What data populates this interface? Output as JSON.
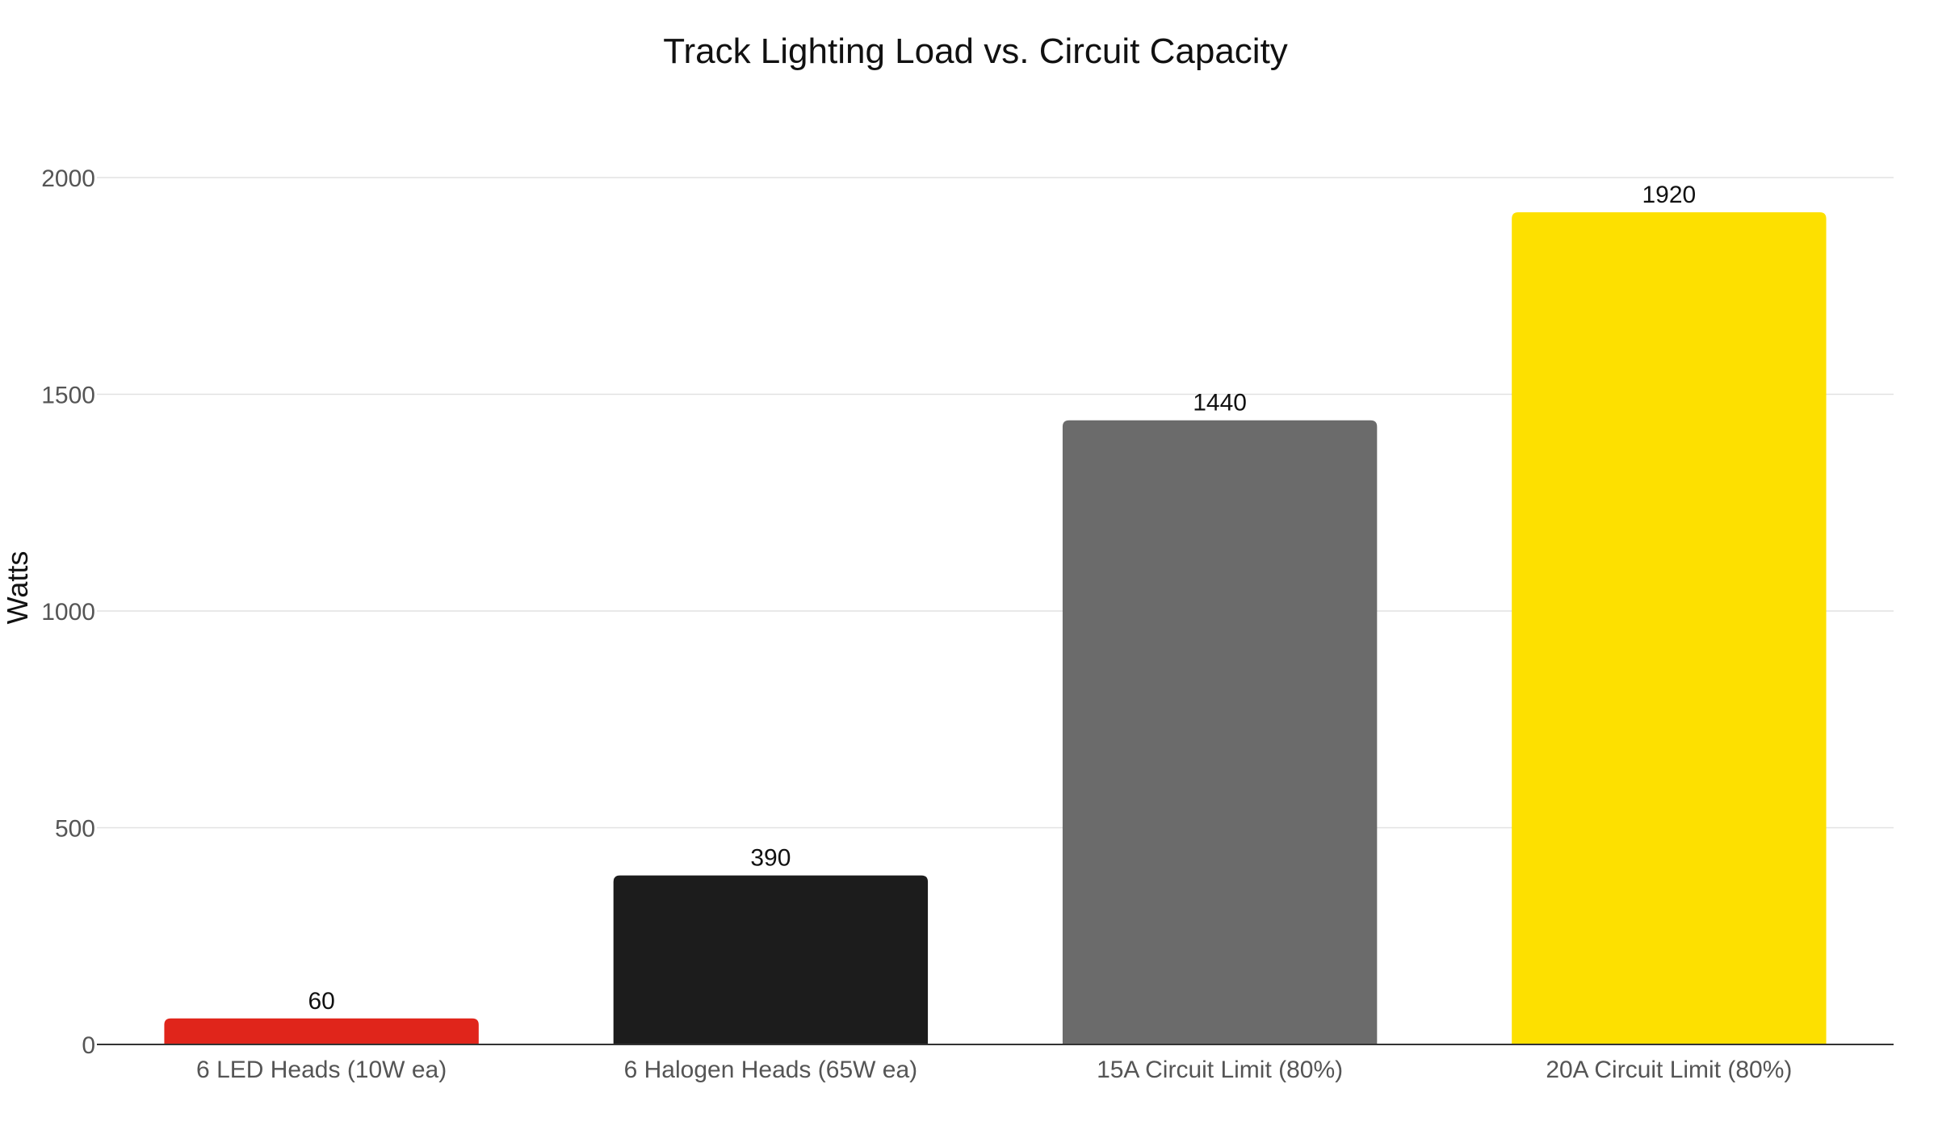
{
  "chart_data": {
    "type": "bar",
    "title": "Track Lighting Load vs. Circuit Capacity",
    "xlabel": "",
    "ylabel": "Watts",
    "ylim": [
      0,
      2000
    ],
    "yticks": [
      0,
      500,
      1000,
      1500,
      2000
    ],
    "grid": true,
    "categories": [
      "6 LED Heads (10W ea)",
      "6 Halogen Heads (65W ea)",
      "15A Circuit Limit (80%)",
      "20A Circuit Limit (80%)"
    ],
    "values": [
      60,
      390,
      1440,
      1920
    ],
    "data_labels": [
      "60",
      "390",
      "1440",
      "1920"
    ],
    "colors": [
      "#e0251b",
      "#1c1c1c",
      "#6b6b6b",
      "#fde000"
    ]
  }
}
